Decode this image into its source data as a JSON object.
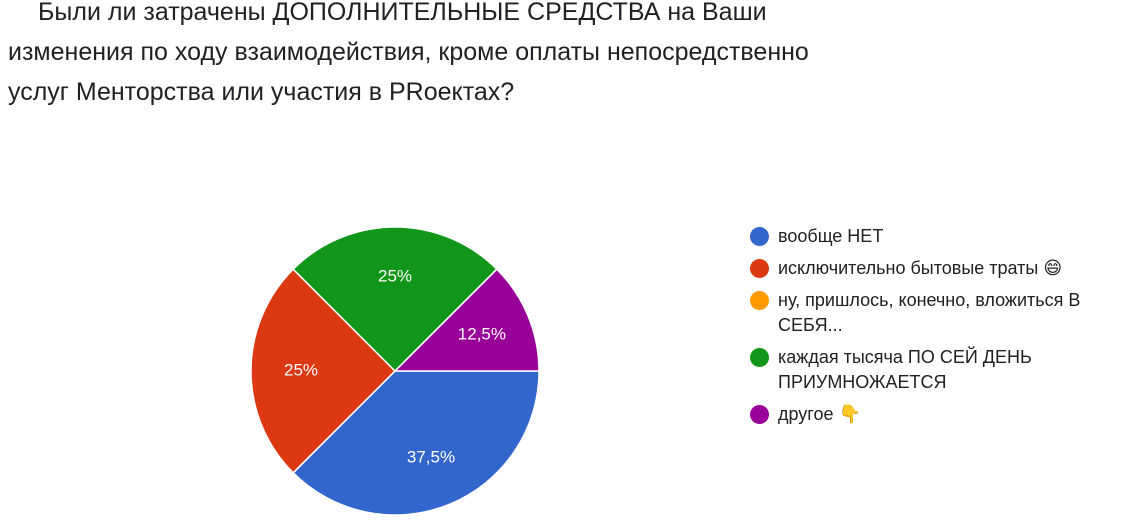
{
  "title": "Были ли затрачены ДОПОЛНИТЕЛЬНЫЕ СРЕДСТВА на Ваши изменения по ходу взаимодействия, кроме оплаты непосредственно услуг Менторства или участия в PRoектах?",
  "chart_data": {
    "type": "pie",
    "title": "Были ли затрачены ДОПОЛНИТЕЛЬНЫЕ СРЕДСТВА на Ваши изменения по ходу взаимодействия, кроме оплаты непосредственно услуг Менторства или участия в PRoектах?",
    "legend_position": "right",
    "slices": [
      {
        "label": "вообще НЕТ",
        "value": 37.5,
        "value_label": "37,5%",
        "color": "#3366cc"
      },
      {
        "label": "исключительно бытовые траты 😄",
        "value": 25,
        "value_label": "25%",
        "color": "#dc3912"
      },
      {
        "label": "ну, пришлось, конечно, вложиться В СЕБЯ...",
        "value": 0,
        "value_label": "",
        "color": "#ff9900"
      },
      {
        "label": "каждая тысяча ПО СЕЙ ДЕНЬ ПРИУМНОЖАЕТСЯ",
        "value": 25,
        "value_label": "25%",
        "color": "#109618"
      },
      {
        "label": "другое 👇",
        "value": 12.5,
        "value_label": "12,5%",
        "color": "#990099"
      }
    ]
  }
}
